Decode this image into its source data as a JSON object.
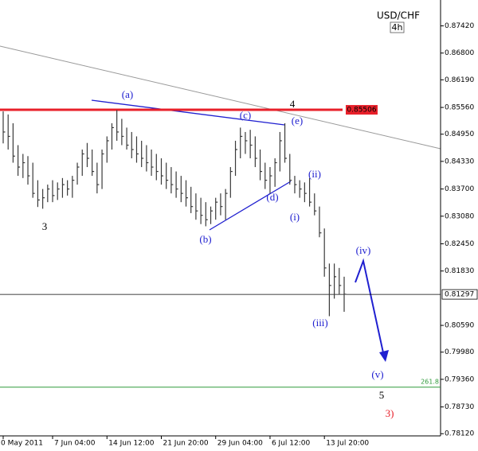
{
  "chart_data": {
    "type": "hlc",
    "title": "USD/CHF",
    "timeframe": "4h",
    "color": "#3a3a3a",
    "categories": [
      "0 May 2011",
      null,
      null,
      null,
      null,
      null,
      null,
      null,
      null,
      null,
      "7 Jun 04:00",
      null,
      null,
      null,
      null,
      null,
      null,
      null,
      null,
      null,
      null,
      "14 Jun 12:00",
      null,
      null,
      null,
      null,
      null,
      null,
      null,
      null,
      null,
      null,
      "21 Jun 20:00",
      null,
      null,
      null,
      null,
      null,
      null,
      null,
      null,
      null,
      null,
      "29 Jun 04:00",
      null,
      null,
      null,
      null,
      null,
      null,
      null,
      null,
      null,
      null,
      "6 Jul 12:00",
      null,
      null,
      null,
      null,
      null,
      null,
      null,
      null,
      null,
      null,
      "13 Jul 20:00",
      null,
      null,
      null,
      null
    ],
    "high": [
      0.8547,
      0.854,
      0.852,
      0.847,
      0.845,
      0.8445,
      0.843,
      0.839,
      0.837,
      0.838,
      0.839,
      0.8385,
      0.8395,
      0.839,
      0.84,
      0.843,
      0.846,
      0.8475,
      0.846,
      0.843,
      0.846,
      0.849,
      0.852,
      0.855,
      0.853,
      0.851,
      0.85,
      0.849,
      0.848,
      0.847,
      0.846,
      0.845,
      0.844,
      0.843,
      0.842,
      0.841,
      0.84,
      0.839,
      0.8375,
      0.836,
      0.835,
      0.834,
      0.833,
      0.835,
      0.836,
      0.837,
      0.842,
      0.848,
      0.851,
      0.85,
      0.8505,
      0.849,
      0.846,
      0.843,
      0.842,
      0.844,
      0.85,
      0.852,
      0.845,
      0.84,
      0.839,
      0.8385,
      0.8395,
      0.836,
      0.833,
      0.828,
      0.82,
      0.82,
      0.819,
      0.817
    ],
    "low": [
      0.8474,
      0.846,
      0.843,
      0.84,
      0.8395,
      0.838,
      0.835,
      0.8329,
      0.8325,
      0.834,
      0.834,
      0.8345,
      0.835,
      0.8355,
      0.835,
      0.838,
      0.84,
      0.842,
      0.84,
      0.836,
      0.837,
      0.843,
      0.846,
      0.848,
      0.847,
      0.846,
      0.844,
      0.843,
      0.842,
      0.841,
      0.84,
      0.839,
      0.838,
      0.837,
      0.836,
      0.835,
      0.834,
      0.833,
      0.8315,
      0.83,
      0.829,
      0.8285,
      0.829,
      0.83,
      0.831,
      0.83,
      0.835,
      0.84,
      0.844,
      0.845,
      0.844,
      0.842,
      0.839,
      0.837,
      0.836,
      0.8375,
      0.841,
      0.843,
      0.838,
      0.836,
      0.835,
      0.834,
      0.833,
      0.831,
      0.826,
      0.817,
      0.808,
      0.812,
      0.813,
      0.809
    ],
    "close": [
      0.85,
      0.849,
      0.8445,
      0.842,
      0.843,
      0.84,
      0.836,
      0.8345,
      0.835,
      0.837,
      0.8355,
      0.837,
      0.838,
      0.837,
      0.839,
      0.842,
      0.845,
      0.844,
      0.841,
      0.838,
      0.845,
      0.848,
      0.851,
      0.85,
      0.849,
      0.847,
      0.846,
      0.845,
      0.844,
      0.843,
      0.842,
      0.841,
      0.84,
      0.839,
      0.838,
      0.837,
      0.836,
      0.835,
      0.833,
      0.832,
      0.831,
      0.83,
      0.832,
      0.834,
      0.833,
      0.836,
      0.841,
      0.846,
      0.849,
      0.848,
      0.847,
      0.844,
      0.841,
      0.839,
      0.84,
      0.843,
      0.848,
      0.844,
      0.839,
      0.838,
      0.837,
      0.836,
      0.834,
      0.832,
      0.827,
      0.819,
      0.815,
      0.817,
      0.815,
      0.813
    ],
    "ylim": [
      0.7807,
      0.8801
    ],
    "yticks": [
      {
        "value": 0.8742,
        "label": "0.87420"
      },
      {
        "value": 0.868,
        "label": "0.86800"
      },
      {
        "value": 0.8619,
        "label": "0.86190"
      },
      {
        "value": 0.8556,
        "label": "0.85560"
      },
      {
        "value": 0.8495,
        "label": "0.84950"
      },
      {
        "value": 0.8433,
        "label": "0.84330"
      },
      {
        "value": 0.837,
        "label": "0.83700"
      },
      {
        "value": 0.8308,
        "label": "0.83080"
      },
      {
        "value": 0.8245,
        "label": "0.82450"
      },
      {
        "value": 0.8183,
        "label": "0.81830"
      },
      {
        "value": 0.8059,
        "label": "0.80590"
      },
      {
        "value": 0.7998,
        "label": "0.79980"
      },
      {
        "value": 0.7936,
        "label": "0.79360"
      },
      {
        "value": 0.7873,
        "label": "0.78730"
      },
      {
        "value": 0.7812,
        "label": "0.78120"
      }
    ],
    "levels": [
      {
        "value": 0.85506,
        "color": "#e8202a"
      },
      {
        "value": 0.81297,
        "color": "#000000"
      }
    ],
    "fib_level": {
      "value": 0.7918,
      "label": "261.8",
      "color": "#2e9a3a"
    },
    "annotations": [
      {
        "text": "(a)",
        "color": "#2020d0"
      },
      {
        "text": "(b)",
        "color": "#2020d0"
      },
      {
        "text": "(c)",
        "color": "#2020d0"
      },
      {
        "text": "(d)",
        "color": "#2020d0"
      },
      {
        "text": "(e)",
        "color": "#2020d0"
      },
      {
        "text": "(i)",
        "color": "#2020d0"
      },
      {
        "text": "(ii)",
        "color": "#2020d0"
      },
      {
        "text": "(iii)",
        "color": "#2020d0"
      },
      {
        "text": "(iv)",
        "color": "#2020d0"
      },
      {
        "text": "(v)",
        "color": "#2020d0"
      },
      {
        "text": "3",
        "color": "#000000"
      },
      {
        "text": "4",
        "color": "#000000"
      },
      {
        "text": "5",
        "color": "#000000"
      },
      {
        "text": "3)",
        "color": "#e8202a"
      }
    ]
  }
}
